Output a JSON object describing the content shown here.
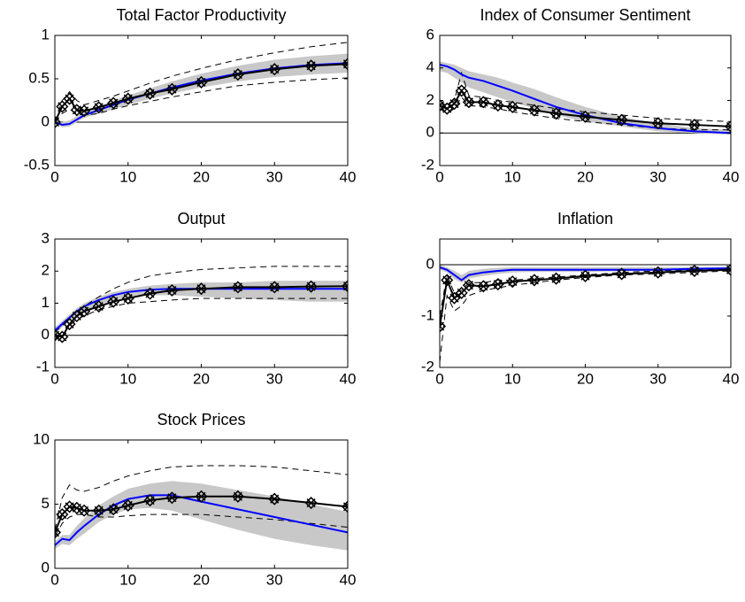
{
  "chart_data": [
    {
      "type": "line",
      "title": "Total Factor Productivity",
      "x": [
        0,
        1,
        2,
        3,
        4,
        6,
        8,
        10,
        13,
        16,
        20,
        25,
        30,
        35,
        40
      ],
      "xlim": [
        0,
        40
      ],
      "xticks": [
        0,
        10,
        20,
        30,
        40
      ],
      "ylim": [
        -0.5,
        1
      ],
      "yticks": [
        -0.5,
        0,
        0.5,
        1
      ],
      "series": [
        {
          "style": "band",
          "color": "#c8c8c8",
          "lower": [
            0,
            -0.06,
            -0.05,
            0,
            0.05,
            0.1,
            0.15,
            0.2,
            0.27,
            0.33,
            0.4,
            0.47,
            0.52,
            0.55,
            0.57
          ],
          "upper": [
            0,
            0,
            0.02,
            0.07,
            0.12,
            0.18,
            0.25,
            0.31,
            0.39,
            0.47,
            0.56,
            0.65,
            0.72,
            0.76,
            0.79
          ]
        },
        {
          "style": "dashed",
          "color": "#000000",
          "values": [
            0,
            0.1,
            0.15,
            0.1,
            0.08,
            0.1,
            0.15,
            0.19,
            0.24,
            0.29,
            0.35,
            0.42,
            0.46,
            0.49,
            0.51
          ]
        },
        {
          "style": "dashed",
          "color": "#000000",
          "values": [
            0,
            0.25,
            0.35,
            0.25,
            0.2,
            0.25,
            0.3,
            0.36,
            0.45,
            0.53,
            0.62,
            0.72,
            0.8,
            0.87,
            0.92
          ]
        },
        {
          "style": "solid",
          "color": "#0000ff",
          "values": [
            0,
            -0.03,
            -0.02,
            0.03,
            0.08,
            0.14,
            0.2,
            0.26,
            0.33,
            0.4,
            0.48,
            0.56,
            0.62,
            0.66,
            0.68
          ]
        },
        {
          "style": "solid",
          "color": "#000000",
          "marker": "diamond-cross",
          "values": [
            0,
            0.18,
            0.27,
            0.14,
            0.13,
            0.17,
            0.22,
            0.27,
            0.33,
            0.38,
            0.46,
            0.55,
            0.61,
            0.65,
            0.67
          ]
        }
      ]
    },
    {
      "type": "line",
      "title": "Index of Consumer Sentiment",
      "x": [
        0,
        1,
        2,
        3,
        4,
        6,
        8,
        10,
        13,
        16,
        20,
        25,
        30,
        35,
        40
      ],
      "xlim": [
        0,
        40
      ],
      "xticks": [
        0,
        10,
        20,
        30,
        40
      ],
      "ylim": [
        -2,
        6
      ],
      "yticks": [
        -2,
        0,
        2,
        4,
        6
      ],
      "series": [
        {
          "style": "band",
          "color": "#c8c8c8",
          "lower": [
            3.8,
            3.7,
            3.4,
            3.1,
            2.8,
            2.5,
            2.2,
            1.9,
            1.5,
            1.1,
            0.7,
            0.4,
            0.1,
            0,
            -0.1
          ],
          "upper": [
            4.4,
            4.3,
            4.2,
            4,
            3.8,
            3.6,
            3.4,
            3.1,
            2.7,
            2.2,
            1.6,
            1,
            0.6,
            0.3,
            0.2
          ]
        },
        {
          "style": "dashed",
          "color": "#000000",
          "values": [
            1.5,
            1.2,
            1.5,
            2.2,
            1.7,
            1.6,
            1.5,
            1.3,
            1.1,
            0.9,
            0.7,
            0.5,
            0.3,
            0.2,
            0.2
          ]
        },
        {
          "style": "dashed",
          "color": "#000000",
          "values": [
            1.8,
            1.7,
            2,
            3.7,
            2.3,
            2.2,
            2,
            1.9,
            1.7,
            1.5,
            1.3,
            1.1,
            0.9,
            0.8,
            0.7
          ]
        },
        {
          "style": "solid",
          "color": "#0000ff",
          "values": [
            4.2,
            4.1,
            3.9,
            3.6,
            3.4,
            3.2,
            2.9,
            2.6,
            2.1,
            1.6,
            1.1,
            0.6,
            0.3,
            0.1,
            0
          ]
        },
        {
          "style": "solid",
          "color": "#000000",
          "marker": "diamond-cross",
          "values": [
            1.7,
            1.5,
            1.8,
            2.6,
            1.9,
            1.9,
            1.7,
            1.6,
            1.4,
            1.2,
            1,
            0.8,
            0.6,
            0.5,
            0.4
          ]
        }
      ]
    },
    {
      "type": "line",
      "title": "Output",
      "x": [
        0,
        1,
        2,
        3,
        4,
        6,
        8,
        10,
        13,
        16,
        20,
        25,
        30,
        35,
        40
      ],
      "xlim": [
        0,
        40
      ],
      "xticks": [
        0,
        10,
        20,
        30,
        40
      ],
      "ylim": [
        -1,
        3
      ],
      "yticks": [
        -1,
        0,
        1,
        2,
        3
      ],
      "series": [
        {
          "style": "band",
          "color": "#c8c8c8",
          "lower": [
            0.05,
            0.25,
            0.45,
            0.6,
            0.75,
            0.95,
            1.1,
            1.2,
            1.25,
            1.25,
            1.2,
            1.15,
            1.1,
            1.05,
            1.05
          ],
          "upper": [
            0.25,
            0.45,
            0.65,
            0.85,
            1,
            1.2,
            1.35,
            1.45,
            1.55,
            1.6,
            1.65,
            1.65,
            1.7,
            1.7,
            1.7
          ]
        },
        {
          "style": "dashed",
          "color": "#000000",
          "values": [
            -0.1,
            0,
            0.3,
            0.5,
            0.6,
            0.8,
            0.9,
            1,
            1.05,
            1.1,
            1.15,
            1.15,
            1.15,
            1.15,
            1.15
          ]
        },
        {
          "style": "dashed",
          "color": "#000000",
          "values": [
            0.1,
            0.3,
            0.55,
            0.75,
            0.9,
            1.2,
            1.45,
            1.65,
            1.85,
            1.95,
            2.05,
            2.1,
            2.15,
            2.15,
            2.15
          ]
        },
        {
          "style": "solid",
          "color": "#0000ff",
          "values": [
            0.15,
            0.35,
            0.55,
            0.75,
            0.9,
            1.1,
            1.25,
            1.35,
            1.42,
            1.45,
            1.45,
            1.45,
            1.45,
            1.45,
            1.45
          ]
        },
        {
          "style": "solid",
          "color": "#000000",
          "marker": "diamond-cross",
          "values": [
            0,
            -0.05,
            0.35,
            0.6,
            0.75,
            0.9,
            1.05,
            1.15,
            1.3,
            1.4,
            1.45,
            1.5,
            1.5,
            1.52,
            1.53
          ]
        }
      ]
    },
    {
      "type": "line",
      "title": "Inflation",
      "x": [
        0,
        1,
        2,
        3,
        4,
        6,
        8,
        10,
        13,
        16,
        20,
        25,
        30,
        35,
        40
      ],
      "xlim": [
        0,
        40
      ],
      "xticks": [
        0,
        10,
        20,
        30,
        40
      ],
      "ylim": [
        -2,
        0.5
      ],
      "yticks": [
        -2,
        -1,
        0
      ],
      "series": [
        {
          "style": "band",
          "color": "#c8c8c8",
          "lower": [
            -0.1,
            -0.15,
            -0.28,
            -0.35,
            -0.27,
            -0.22,
            -0.18,
            -0.15,
            -0.14,
            -0.14,
            -0.14,
            -0.13,
            -0.12,
            -0.1,
            -0.09
          ],
          "upper": [
            0,
            -0.05,
            -0.12,
            -0.2,
            -0.12,
            -0.08,
            -0.06,
            -0.05,
            -0.05,
            -0.05,
            -0.05,
            -0.05,
            -0.05,
            -0.05,
            -0.05
          ]
        },
        {
          "style": "dashed",
          "color": "#000000",
          "values": [
            -1.9,
            -0.6,
            -0.9,
            -0.8,
            -0.6,
            -0.5,
            -0.45,
            -0.4,
            -0.35,
            -0.3,
            -0.25,
            -0.2,
            -0.18,
            -0.15,
            -0.12
          ]
        },
        {
          "style": "dashed",
          "color": "#000000",
          "values": [
            -1,
            -0.2,
            -0.55,
            -0.5,
            -0.35,
            -0.35,
            -0.3,
            -0.3,
            -0.27,
            -0.24,
            -0.2,
            -0.15,
            -0.12,
            -0.1,
            -0.08
          ]
        },
        {
          "style": "solid",
          "color": "#0000ff",
          "values": [
            -0.05,
            -0.1,
            -0.2,
            -0.3,
            -0.2,
            -0.15,
            -0.12,
            -0.1,
            -0.1,
            -0.1,
            -0.1,
            -0.1,
            -0.1,
            -0.08,
            -0.07
          ]
        },
        {
          "style": "solid",
          "color": "#000000",
          "marker": "diamond-cross",
          "values": [
            -1.2,
            -0.3,
            -0.65,
            -0.55,
            -0.4,
            -0.42,
            -0.38,
            -0.33,
            -0.3,
            -0.27,
            -0.22,
            -0.18,
            -0.15,
            -0.12,
            -0.1
          ]
        }
      ]
    },
    {
      "type": "line",
      "title": "Stock Prices",
      "x": [
        0,
        1,
        2,
        3,
        4,
        6,
        8,
        10,
        13,
        16,
        20,
        25,
        30,
        35,
        40
      ],
      "xlim": [
        0,
        40
      ],
      "xticks": [
        0,
        10,
        20,
        30,
        40
      ],
      "ylim": [
        0,
        10
      ],
      "yticks": [
        0,
        5,
        10
      ],
      "series": [
        {
          "style": "band",
          "color": "#c8c8c8",
          "lower": [
            1.5,
            1.9,
            1.8,
            2.3,
            2.7,
            3.6,
            4.2,
            4.6,
            4.7,
            4.5,
            3.8,
            3,
            2.3,
            1.8,
            1.4
          ],
          "upper": [
            2.1,
            2.6,
            2.6,
            3.3,
            3.9,
            4.9,
            5.6,
            6.2,
            6.6,
            6.8,
            6.6,
            6.1,
            5.6,
            5,
            4.4
          ]
        },
        {
          "style": "dashed",
          "color": "#000000",
          "values": [
            2.5,
            3.5,
            4,
            4.2,
            4.2,
            4,
            4,
            4.1,
            4.2,
            4.2,
            4.2,
            4,
            3.8,
            3.5,
            3.2
          ]
        },
        {
          "style": "dashed",
          "color": "#000000",
          "values": [
            3,
            5.5,
            6.5,
            6.1,
            6,
            6.3,
            6.8,
            7.2,
            7.6,
            7.9,
            8,
            8,
            7.9,
            7.6,
            7.3
          ]
        },
        {
          "style": "solid",
          "color": "#0000ff",
          "values": [
            1.8,
            2.3,
            2.2,
            2.8,
            3.3,
            4.2,
            4.9,
            5.4,
            5.7,
            5.7,
            5.2,
            4.6,
            4,
            3.4,
            2.8
          ]
        },
        {
          "style": "solid",
          "color": "#000000",
          "marker": "diamond-cross",
          "values": [
            2.8,
            4.2,
            4.8,
            4.7,
            4.5,
            4.5,
            4.6,
            4.9,
            5.3,
            5.5,
            5.6,
            5.6,
            5.4,
            5.1,
            4.8
          ]
        }
      ]
    }
  ]
}
